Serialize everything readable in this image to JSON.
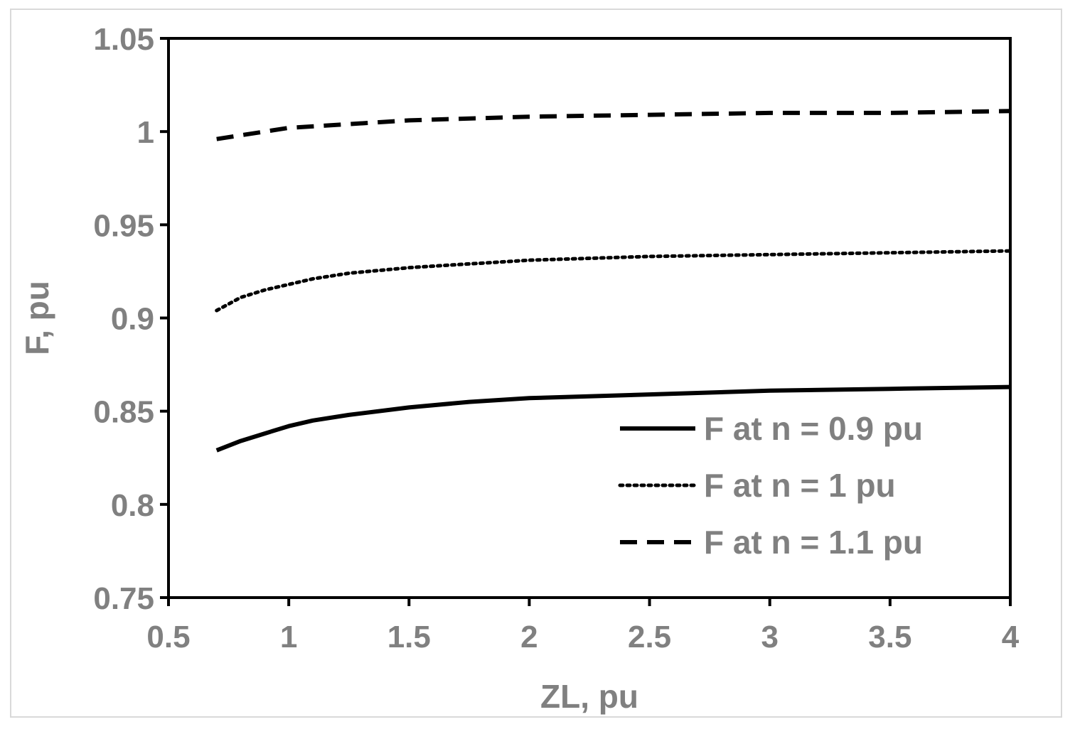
{
  "chart_data": {
    "type": "line",
    "xlabel": "ZL, pu",
    "ylabel": "F, pu",
    "xlim": [
      0.5,
      4
    ],
    "ylim": [
      0.75,
      1.05
    ],
    "xticks": [
      0.5,
      1,
      1.5,
      2,
      2.5,
      3,
      3.5,
      4
    ],
    "xtick_labels": [
      "0.5",
      "1",
      "1.5",
      "2",
      "2.5",
      "3",
      "3.5",
      "4"
    ],
    "yticks": [
      0.75,
      0.8,
      0.85,
      0.9,
      0.95,
      1,
      1.05
    ],
    "ytick_labels": [
      "0.75",
      "0.8",
      "0.85",
      "0.9",
      "0.95",
      "1",
      "1.05"
    ],
    "grid": false,
    "legend_position": "bottom-right",
    "series": [
      {
        "name": "F at n = 0.9 pu",
        "style": "solid",
        "x": [
          0.7,
          0.8,
          0.9,
          1.0,
          1.1,
          1.25,
          1.5,
          1.75,
          2.0,
          2.5,
          3.0,
          3.5,
          4.0
        ],
        "y": [
          0.829,
          0.834,
          0.838,
          0.842,
          0.845,
          0.848,
          0.852,
          0.855,
          0.857,
          0.859,
          0.861,
          0.862,
          0.863
        ]
      },
      {
        "name": "F at n = 1 pu",
        "style": "dotted",
        "x": [
          0.7,
          0.8,
          0.9,
          1.0,
          1.1,
          1.25,
          1.5,
          1.75,
          2.0,
          2.5,
          3.0,
          3.5,
          4.0
        ],
        "y": [
          0.904,
          0.911,
          0.915,
          0.918,
          0.921,
          0.924,
          0.927,
          0.929,
          0.931,
          0.933,
          0.934,
          0.935,
          0.936
        ]
      },
      {
        "name": "F at n = 1.1 pu",
        "style": "dashed",
        "x": [
          0.7,
          0.8,
          0.9,
          1.0,
          1.25,
          1.5,
          2.0,
          2.5,
          3.0,
          3.5,
          4.0
        ],
        "y": [
          0.996,
          0.998,
          1.0,
          1.002,
          1.004,
          1.006,
          1.008,
          1.009,
          1.01,
          1.01,
          1.011
        ]
      }
    ]
  }
}
